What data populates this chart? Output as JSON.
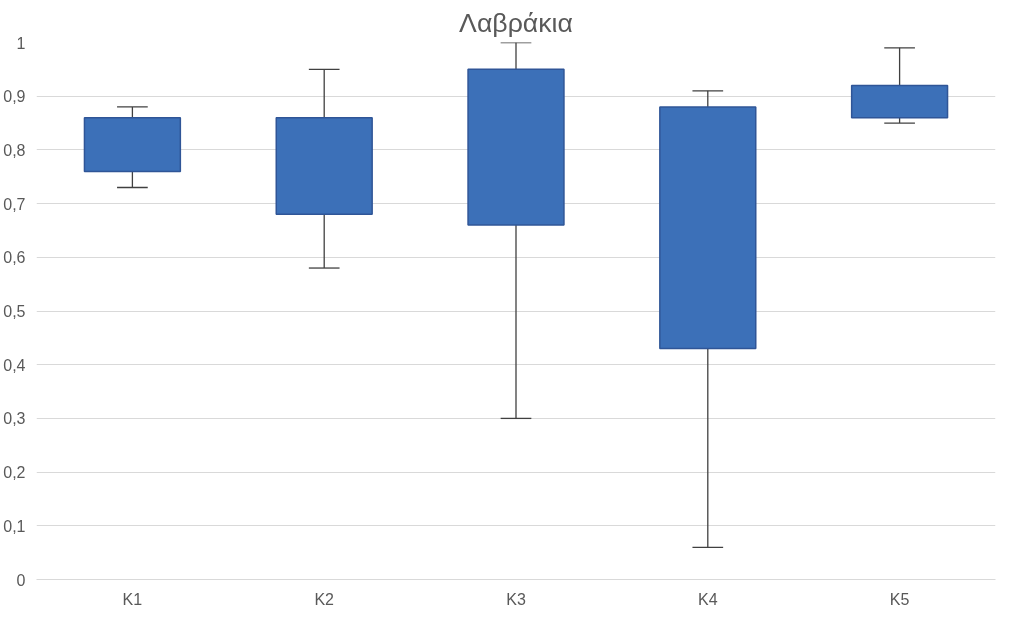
{
  "chart_data": {
    "type": "box",
    "title": "Λαβράκια",
    "categories": [
      "K1",
      "K2",
      "K3",
      "K4",
      "K5"
    ],
    "boxes": [
      {
        "low": 0.73,
        "q1": 0.76,
        "q3": 0.86,
        "high": 0.88
      },
      {
        "low": 0.58,
        "q1": 0.68,
        "q3": 0.86,
        "high": 0.95
      },
      {
        "low": 0.3,
        "q1": 0.66,
        "q3": 0.95,
        "high": 1.0
      },
      {
        "low": 0.06,
        "q1": 0.43,
        "q3": 0.88,
        "high": 0.91
      },
      {
        "low": 0.85,
        "q1": 0.86,
        "q3": 0.92,
        "high": 0.99
      }
    ],
    "color": "#3c70b8",
    "ylim": [
      0,
      1
    ],
    "yticks": [
      {
        "value": 0,
        "label": "0"
      },
      {
        "value": 0.1,
        "label": "0,1"
      },
      {
        "value": 0.2,
        "label": "0,2"
      },
      {
        "value": 0.3,
        "label": "0,3"
      },
      {
        "value": 0.4,
        "label": "0,4"
      },
      {
        "value": 0.5,
        "label": "0,5"
      },
      {
        "value": 0.6,
        "label": "0,6"
      },
      {
        "value": 0.7,
        "label": "0,7"
      },
      {
        "value": 0.8,
        "label": "0,8"
      },
      {
        "value": 0.9,
        "label": "0,9"
      },
      {
        "value": 1,
        "label": "1"
      }
    ],
    "grid": "y"
  }
}
